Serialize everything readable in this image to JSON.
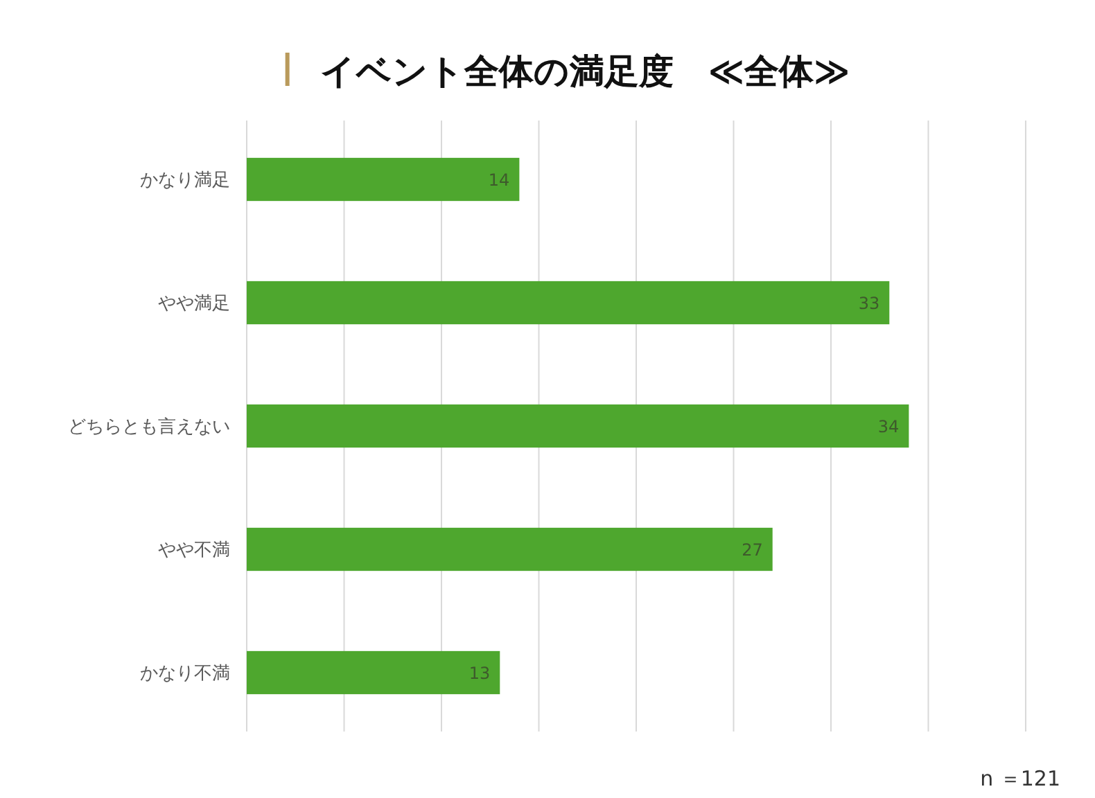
{
  "chart_data": {
    "type": "bar",
    "orientation": "horizontal",
    "title": "イベント全体の満足度　≪全体≫",
    "categories": [
      "かなり満足",
      "やや満足",
      "どちらとも言えない",
      "やや不満",
      "かなり不満"
    ],
    "values": [
      14,
      33,
      34,
      27,
      13
    ],
    "color": "#4ea72e",
    "xlim": [
      0,
      40
    ],
    "xticks": [
      {
        "value": 0,
        "label": null
      },
      {
        "value": 5,
        "label": null
      },
      {
        "value": 10,
        "label": null
      },
      {
        "value": 15,
        "label": null
      },
      {
        "value": 20,
        "label": null
      },
      {
        "value": 25,
        "label": null
      },
      {
        "value": 30,
        "label": null
      },
      {
        "value": 35,
        "label": null
      },
      {
        "value": 40,
        "label": null
      }
    ],
    "grid": "x",
    "tick_labels": "y",
    "data_labels": true,
    "annotations": [
      "n ＝121"
    ]
  }
}
